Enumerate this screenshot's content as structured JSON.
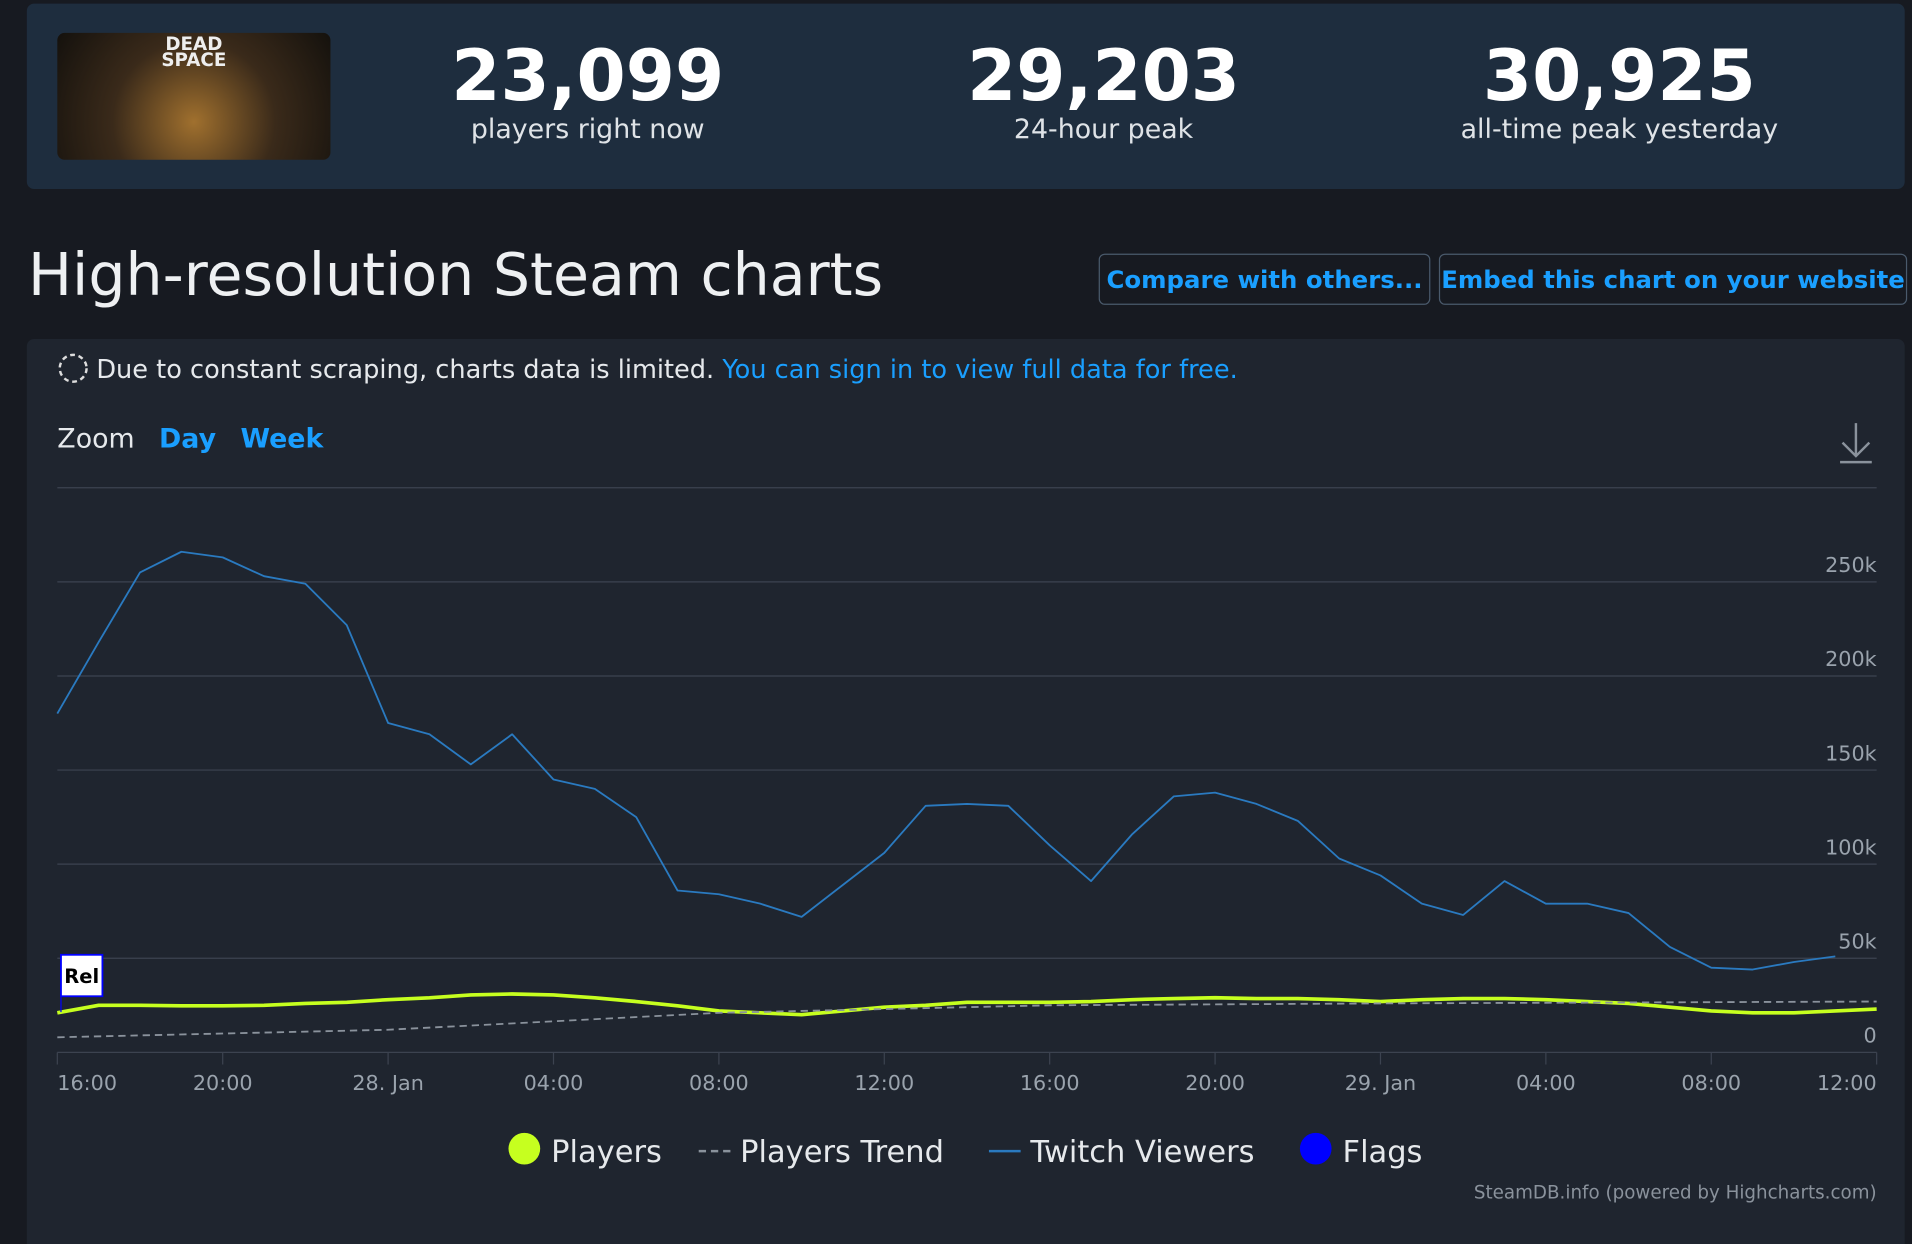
{
  "header": {
    "image_text": "DEAD SPACE",
    "stats": [
      {
        "value": "23,099",
        "label": "players right now"
      },
      {
        "value": "29,203",
        "label": "24-hour peak"
      },
      {
        "value": "30,925",
        "label": "all-time peak yesterday"
      }
    ]
  },
  "title": "High-resolution Steam charts",
  "buttons": [
    "Compare with others...",
    "Embed this chart on your website"
  ],
  "notice": {
    "text": "Due to constant scraping, charts data is limited.",
    "link": "You can sign in to view full data for free."
  },
  "zoom": {
    "label": "Zoom",
    "options": [
      "Day",
      "Week"
    ]
  },
  "chart_data": {
    "type": "line",
    "xlim": [
      16,
      60
    ],
    "xticks": [
      {
        "value": 16,
        "label": "16:00"
      },
      {
        "value": 20,
        "label": "20:00"
      },
      {
        "value": 24,
        "label": "28. Jan"
      },
      {
        "value": 28,
        "label": "04:00"
      },
      {
        "value": 32,
        "label": "08:00"
      },
      {
        "value": 36,
        "label": "12:00"
      },
      {
        "value": 40,
        "label": "16:00"
      },
      {
        "value": 44,
        "label": "20:00"
      },
      {
        "value": 48,
        "label": "29. Jan"
      },
      {
        "value": 52,
        "label": "04:00"
      },
      {
        "value": 56,
        "label": "08:00"
      },
      {
        "value": 60,
        "label": "12:00"
      }
    ],
    "ylim": [
      0,
      300000
    ],
    "yticks": [
      0,
      {
        "value": 50000,
        "label": "50k"
      },
      {
        "value": 100000,
        "label": "100k"
      },
      {
        "value": 150000,
        "label": "150k"
      },
      {
        "value": 200000,
        "label": "200k"
      },
      {
        "value": 250000,
        "label": "250k"
      }
    ],
    "grid": true,
    "series": [
      {
        "name": "Players",
        "color": "#c6ff1f",
        "marker": "circle",
        "x": [
          16,
          17,
          18,
          19,
          20,
          21,
          22,
          23,
          24,
          25,
          26,
          27,
          28,
          29,
          30,
          31,
          32,
          33,
          34,
          35,
          36,
          37,
          38,
          39,
          40,
          41,
          42,
          43,
          44,
          45,
          46,
          47,
          48,
          49,
          50,
          51,
          52,
          53,
          54,
          55,
          56,
          57,
          58,
          59,
          60
        ],
        "values": [
          21000,
          25000,
          25000,
          24700,
          24700,
          25000,
          26000,
          26600,
          28000,
          29000,
          30500,
          31000,
          30500,
          29000,
          27000,
          24700,
          22000,
          21000,
          20000,
          22000,
          24000,
          25000,
          26600,
          26600,
          26600,
          27000,
          28000,
          28600,
          29000,
          28600,
          28600,
          28000,
          27000,
          28000,
          28600,
          28600,
          28000,
          27000,
          26000,
          24000,
          22000,
          21000,
          21000,
          22000,
          23000
        ]
      },
      {
        "name": "Players Trend",
        "color": "#8a929c",
        "dash": true,
        "x": [
          16,
          24,
          32,
          40,
          48,
          60
        ],
        "values": [
          8000,
          12000,
          21000,
          25000,
          26000,
          27000
        ]
      },
      {
        "name": "Twitch Viewers",
        "color": "#2a7ac0",
        "x": [
          16,
          17,
          18,
          19,
          20,
          21,
          22,
          23,
          24,
          25,
          26,
          27,
          28,
          29,
          30,
          31,
          32,
          33,
          34,
          35,
          36,
          37,
          38,
          39,
          40,
          41,
          42,
          43,
          44,
          45,
          46,
          47,
          48,
          49,
          50,
          51,
          52,
          53,
          54,
          55,
          56,
          57,
          58,
          59
        ],
        "values": [
          180000,
          218000,
          255000,
          266000,
          263000,
          253000,
          249000,
          227000,
          175000,
          169000,
          153000,
          169000,
          145000,
          140000,
          125000,
          86000,
          84000,
          79000,
          72000,
          89000,
          106000,
          131000,
          132000,
          131000,
          110000,
          91000,
          116000,
          136000,
          138000,
          132000,
          123000,
          103000,
          94000,
          79000,
          73000,
          91000,
          79000,
          79000,
          74000,
          56000,
          45000,
          44000,
          48000,
          51000
        ]
      }
    ],
    "flags": {
      "name": "Flags",
      "color": "#0000ff",
      "points": [
        {
          "x": 16,
          "label": "Rel"
        }
      ]
    },
    "credits": "SteamDB.info (powered by Highcharts.com)"
  }
}
